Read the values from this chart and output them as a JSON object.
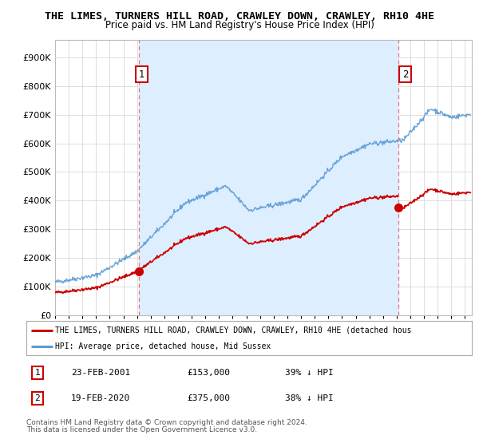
{
  "title": "THE LIMES, TURNERS HILL ROAD, CRAWLEY DOWN, CRAWLEY, RH10 4HE",
  "subtitle": "Price paid vs. HM Land Registry's House Price Index (HPI)",
  "ytick_values": [
    0,
    100000,
    200000,
    300000,
    400000,
    500000,
    600000,
    700000,
    800000,
    900000
  ],
  "ylim": [
    0,
    960000
  ],
  "xlim_start": 1995.0,
  "xlim_end": 2025.5,
  "hpi_color": "#5b9bd5",
  "price_color": "#cc0000",
  "vline_color": "#e87878",
  "shade_color": "#ddeeff",
  "marker1_x": 2001.13,
  "marker1_y": 153000,
  "marker2_x": 2020.12,
  "marker2_y": 375000,
  "legend_line1": "THE LIMES, TURNERS HILL ROAD, CRAWLEY DOWN, CRAWLEY, RH10 4HE (detached hous",
  "legend_line2": "HPI: Average price, detached house, Mid Sussex",
  "annotation1_label": "1",
  "annotation2_label": "2",
  "table_row1": [
    "1",
    "23-FEB-2001",
    "£153,000",
    "39% ↓ HPI"
  ],
  "table_row2": [
    "2",
    "19-FEB-2020",
    "£375,000",
    "38% ↓ HPI"
  ],
  "footnote1": "Contains HM Land Registry data © Crown copyright and database right 2024.",
  "footnote2": "This data is licensed under the Open Government Licence v3.0.",
  "background_color": "#ffffff",
  "grid_color": "#d8d8d8",
  "title_fontsize": 9.5,
  "subtitle_fontsize": 8.5
}
